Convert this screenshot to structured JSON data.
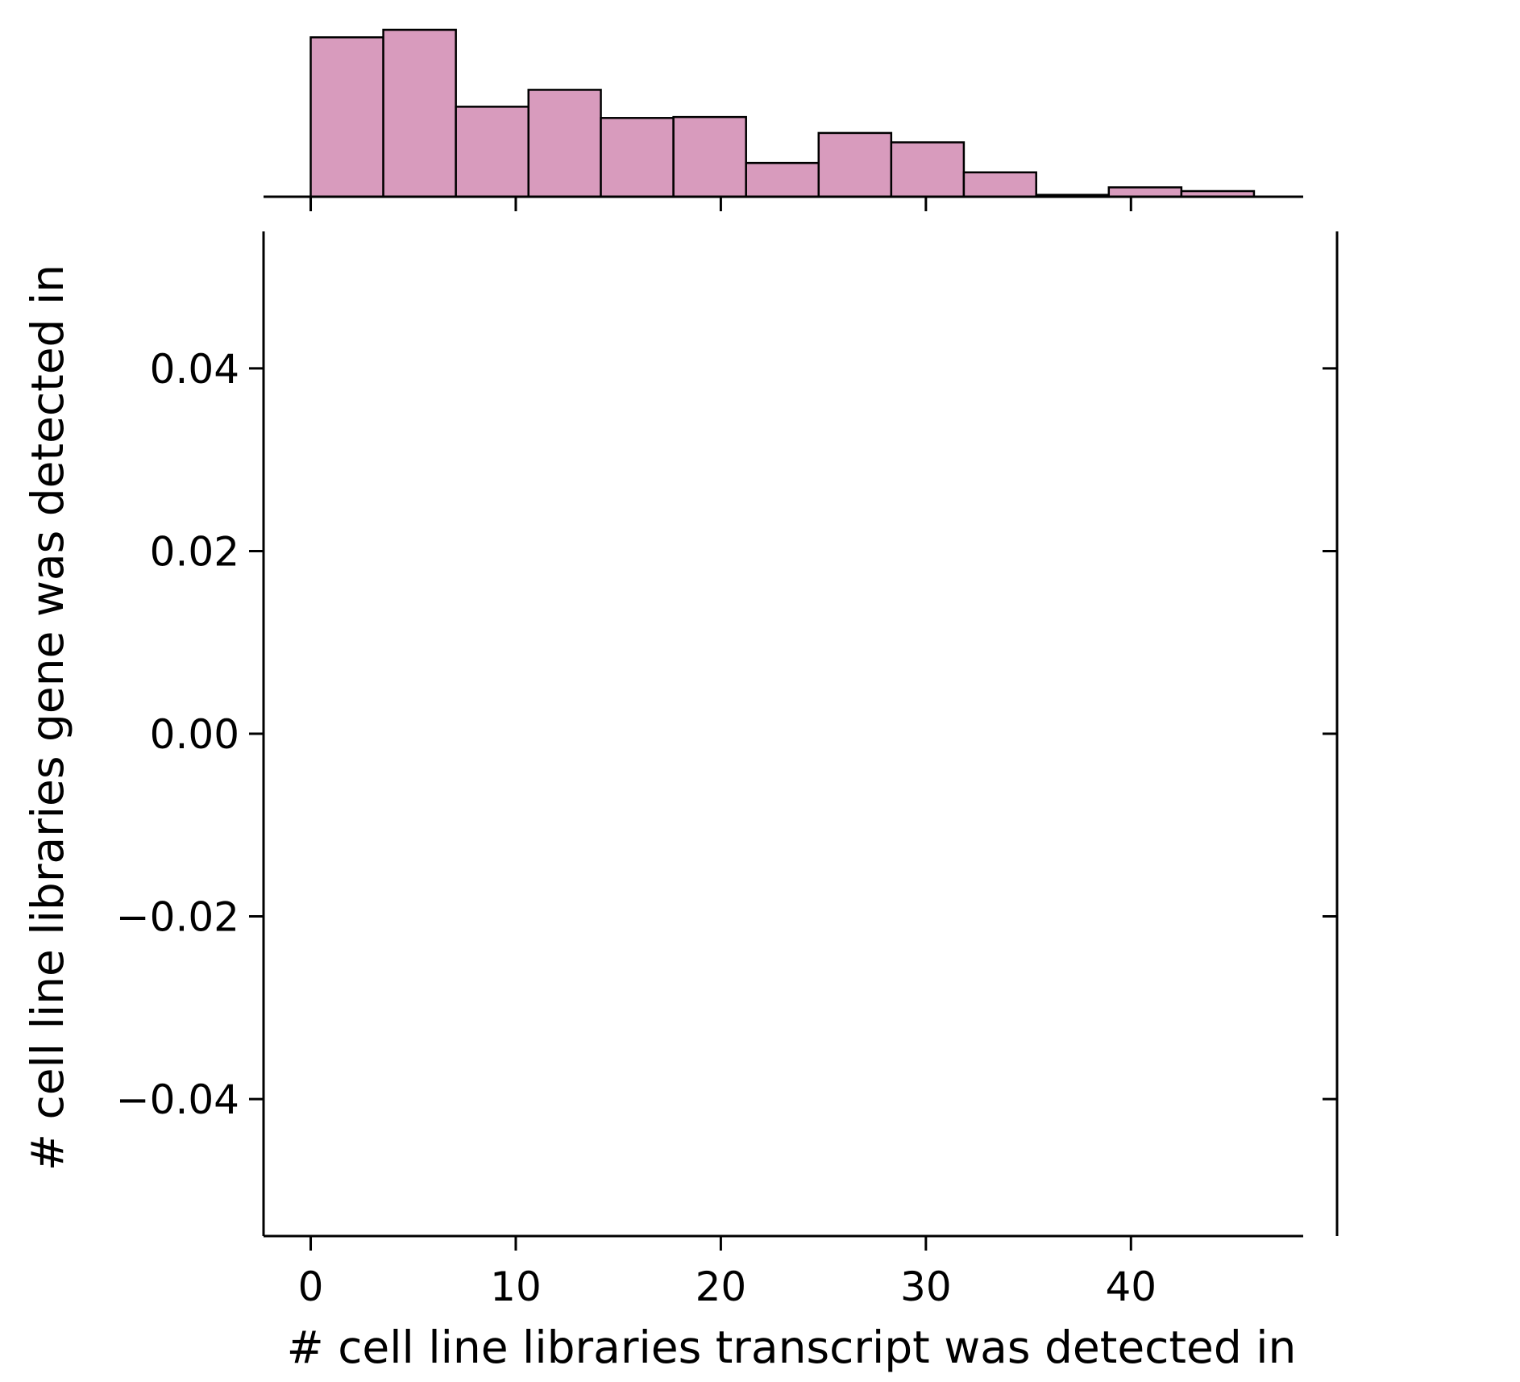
{
  "chart_data": {
    "type": "jointplot",
    "xlabel": "# cell line libraries transcript was detected in",
    "ylabel": "# cell line libraries gene was detected in",
    "main": {
      "type": "scatter",
      "points": [],
      "xlim": [
        -2.3,
        48.4
      ],
      "ylim": [
        -0.055,
        0.055
      ],
      "x_ticks": [
        0,
        10,
        20,
        30,
        40
      ],
      "x_tick_labels": [
        "0",
        "10",
        "20",
        "30",
        "40"
      ],
      "y_ticks": [
        0.04,
        0.02,
        0.0,
        -0.02,
        -0.04
      ],
      "y_tick_labels": [
        "0.04",
        "0.02",
        "0.00",
        "−0.02",
        "−0.04"
      ],
      "grid": false
    },
    "marginal_x": {
      "type": "histogram",
      "bins": [
        {
          "x0": 0.0,
          "x1": 3.54,
          "count": 85
        },
        {
          "x0": 3.54,
          "x1": 7.08,
          "count": 89
        },
        {
          "x0": 7.08,
          "x1": 10.62,
          "count": 48
        },
        {
          "x0": 10.62,
          "x1": 14.15,
          "count": 57
        },
        {
          "x0": 14.15,
          "x1": 17.69,
          "count": 42
        },
        {
          "x0": 17.69,
          "x1": 21.23,
          "count": 42.5
        },
        {
          "x0": 21.23,
          "x1": 24.77,
          "count": 18
        },
        {
          "x0": 24.77,
          "x1": 28.31,
          "count": 34
        },
        {
          "x0": 28.31,
          "x1": 31.85,
          "count": 29
        },
        {
          "x0": 31.85,
          "x1": 35.38,
          "count": 13
        },
        {
          "x0": 35.38,
          "x1": 38.92,
          "count": 1
        },
        {
          "x0": 38.92,
          "x1": 42.46,
          "count": 5
        },
        {
          "x0": 42.46,
          "x1": 46.0,
          "count": 3
        }
      ],
      "y_max": 92,
      "fill": "#d89bbd",
      "edge": "#000000"
    },
    "marginal_y": {
      "type": "histogram",
      "bins": []
    }
  }
}
